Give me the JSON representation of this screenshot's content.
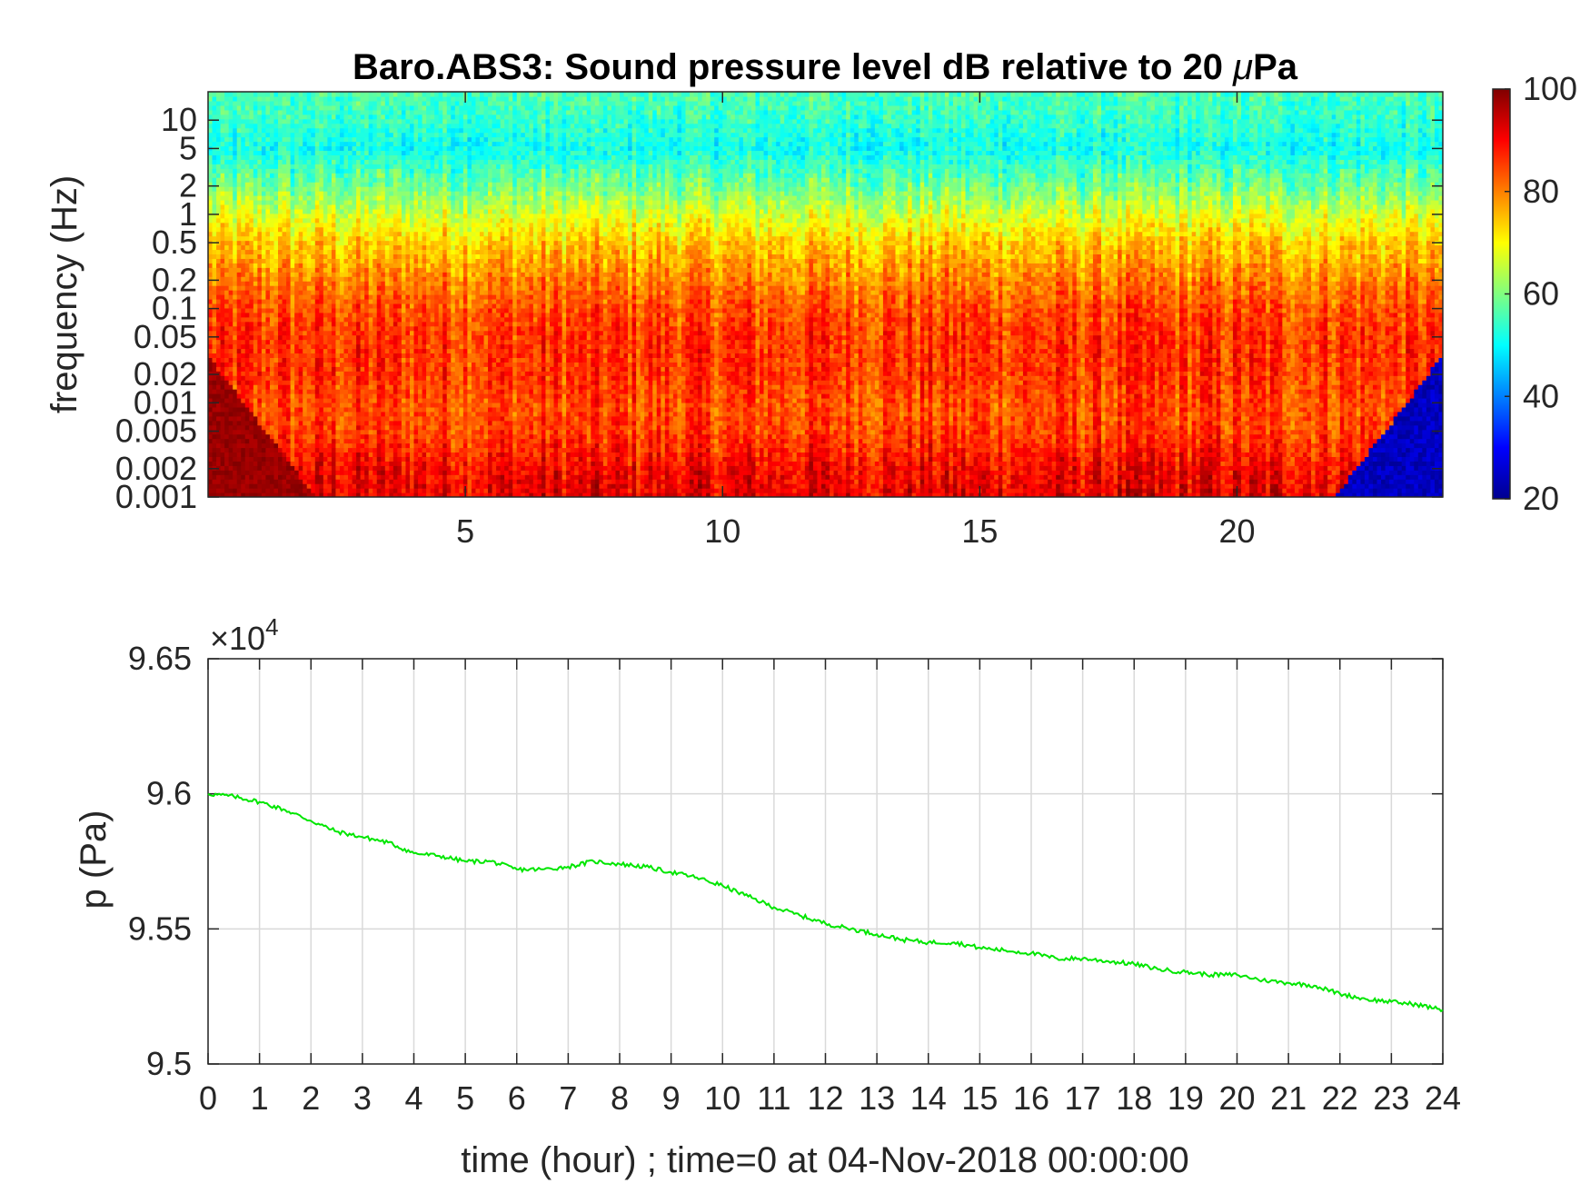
{
  "chart_data": [
    {
      "type": "heatmap",
      "title_prefix": "Baro.ABS3: Sound pressure level dB relative to 20 ",
      "title_mu": "μ",
      "title_suffix": "Pa",
      "ylabel": "frequency (Hz)",
      "y_scale": "log",
      "ylim": [
        0.001,
        20
      ],
      "yticks": [
        0.001,
        0.002,
        0.005,
        0.01,
        0.02,
        0.05,
        0.1,
        0.2,
        0.5,
        1,
        2,
        5,
        10
      ],
      "ytick_labels": [
        "0.001",
        "0.002",
        "0.005",
        "0.01",
        "0.02",
        "0.05",
        "0.1",
        "0.2",
        "0.5",
        "1",
        "2",
        "5",
        "10"
      ],
      "xlim": [
        0,
        24
      ],
      "xticks": [
        5,
        10,
        15,
        20
      ],
      "xtick_labels": [
        "5",
        "10",
        "15",
        "20"
      ],
      "colormap": "jet",
      "clim": [
        20,
        100
      ],
      "colorbar_ticks": [
        20,
        40,
        60,
        80,
        100
      ],
      "colorbar_tick_labels": [
        "20",
        "40",
        "60",
        "80",
        "100"
      ],
      "level_profile_by_frequency": {
        "freq_hz": [
          0.001,
          0.002,
          0.005,
          0.01,
          0.02,
          0.05,
          0.1,
          0.2,
          0.5,
          1,
          2,
          5,
          10,
          20
        ],
        "level_db": [
          92,
          90,
          85,
          84,
          86,
          86,
          84,
          80,
          74,
          67,
          59,
          51,
          54,
          56
        ]
      },
      "grid": false
    },
    {
      "type": "line",
      "ylabel": "p (Pa)",
      "xlabel": "time (hour) ; time=0 at 04-Nov-2018 00:00:00",
      "exponent_label": "×10",
      "exponent_power": "4",
      "xlim": [
        0,
        24
      ],
      "ylim": [
        9.5,
        9.65
      ],
      "y_multiplier": 10000,
      "xticks": [
        0,
        1,
        2,
        3,
        4,
        5,
        6,
        7,
        8,
        9,
        10,
        11,
        12,
        13,
        14,
        15,
        16,
        17,
        18,
        19,
        20,
        21,
        22,
        23,
        24
      ],
      "xtick_labels": [
        "0",
        "1",
        "2",
        "3",
        "4",
        "5",
        "6",
        "7",
        "8",
        "9",
        "10",
        "11",
        "12",
        "13",
        "14",
        "15",
        "16",
        "17",
        "18",
        "19",
        "20",
        "21",
        "22",
        "23",
        "24"
      ],
      "yticks": [
        9.5,
        9.55,
        9.6,
        9.65
      ],
      "ytick_labels": [
        "9.5",
        "9.55",
        "9.6",
        "9.65"
      ],
      "grid": true,
      "line_color": "#00e600",
      "series": [
        {
          "x": [
            0,
            0.5,
            1,
            1.5,
            2,
            2.5,
            3,
            3.5,
            4,
            4.5,
            5,
            5.5,
            6,
            6.5,
            7,
            7.5,
            8,
            8.5,
            9,
            9.5,
            10,
            10.5,
            11,
            11.5,
            12,
            12.5,
            13,
            13.5,
            14,
            14.5,
            15,
            15.5,
            16,
            16.5,
            17,
            17.5,
            18,
            18.5,
            19,
            19.5,
            20,
            20.5,
            21,
            21.5,
            22,
            22.5,
            23,
            23.5,
            24
          ],
          "y": [
            9.6,
            9.599,
            9.597,
            9.594,
            9.59,
            9.586,
            9.584,
            9.582,
            9.578,
            9.577,
            9.575,
            9.575,
            9.572,
            9.572,
            9.573,
            9.575,
            9.574,
            9.573,
            9.571,
            9.569,
            9.566,
            9.562,
            9.558,
            9.555,
            9.552,
            9.55,
            9.548,
            9.546,
            9.545,
            9.545,
            9.543,
            9.542,
            9.541,
            9.539,
            9.539,
            9.538,
            9.537,
            9.535,
            9.534,
            9.533,
            9.533,
            9.531,
            9.53,
            9.529,
            9.526,
            9.524,
            9.523,
            9.522,
            9.52
          ]
        }
      ]
    }
  ]
}
